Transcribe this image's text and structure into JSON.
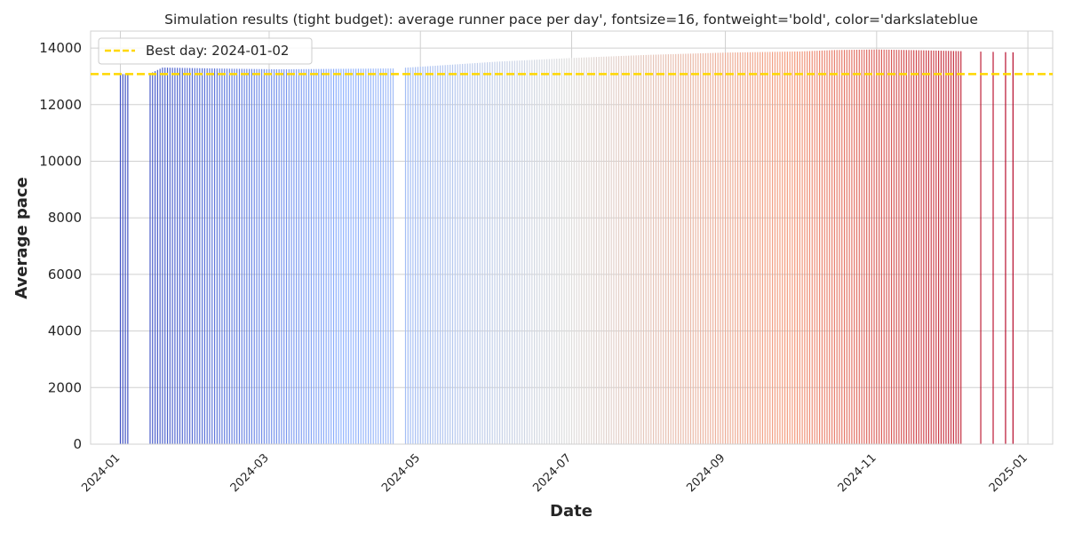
{
  "chart_data": {
    "type": "bar",
    "title": "Simulation results (tight budget): average runner pace per day', fontsize=16, fontweight='bold', color='darkslateblue",
    "xlabel": "Date",
    "ylabel": "Average pace",
    "ylim": [
      0,
      14600
    ],
    "yticks": [
      0,
      2000,
      4000,
      6000,
      8000,
      10000,
      12000,
      14000
    ],
    "xlim": [
      "2023-12-20",
      "2025-01-11"
    ],
    "xticks": [
      "2024-01",
      "2024-03",
      "2024-05",
      "2024-07",
      "2024-09",
      "2024-11",
      "2025-01"
    ],
    "grid": true,
    "legend": {
      "location": "top-left",
      "entries": [
        "Best day: 2024-01-02"
      ]
    },
    "reference_line": {
      "label": "Best day: 2024-01-02",
      "value": 13080,
      "color": "#ffd700",
      "style": "dashed"
    },
    "colormap": "coolwarm",
    "missing_date_ranges": [
      [
        "2024-01-05",
        "2024-01-12"
      ],
      [
        "2024-04-21",
        "2024-04-24"
      ],
      [
        "2024-12-06",
        "2024-12-12"
      ],
      [
        "2024-12-14",
        "2024-12-17"
      ],
      [
        "2024-12-19",
        "2024-12-22"
      ],
      [
        "2024-12-24",
        "2024-12-25"
      ],
      [
        "2024-12-27",
        "2024-12-31"
      ]
    ],
    "series": [
      {
        "name": "Average pace",
        "start_date": "2024-01-01",
        "end_date": "2024-12-26",
        "pace_profile": [
          [
            "2024-01-01",
            13050
          ],
          [
            "2024-01-02",
            13080
          ],
          [
            "2024-01-13",
            13100
          ],
          [
            "2024-01-18",
            13310
          ],
          [
            "2024-02-15",
            13270
          ],
          [
            "2024-03-05",
            13250
          ],
          [
            "2024-04-20",
            13280
          ],
          [
            "2024-05-01",
            13340
          ],
          [
            "2024-06-01",
            13520
          ],
          [
            "2024-07-01",
            13650
          ],
          [
            "2024-08-01",
            13760
          ],
          [
            "2024-09-01",
            13840
          ],
          [
            "2024-10-01",
            13880
          ],
          [
            "2024-10-15",
            13930
          ],
          [
            "2024-11-01",
            13950
          ],
          [
            "2024-11-20",
            13920
          ],
          [
            "2024-12-26",
            13850
          ]
        ]
      }
    ]
  }
}
